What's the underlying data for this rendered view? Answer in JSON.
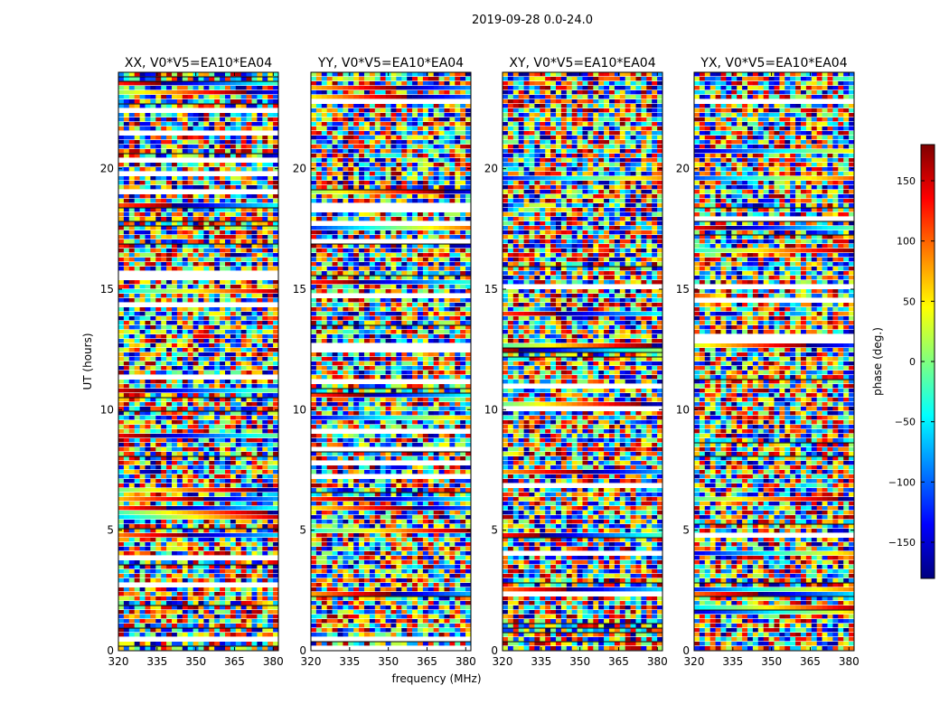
{
  "figure": {
    "title": "2019-09-28 0.0-24.0",
    "xlabel": "frequency (MHz)",
    "ylabel": "UT (hours)"
  },
  "colorbar": {
    "label": "phase (deg.)",
    "range": [
      -180,
      180
    ],
    "ticks": [
      150,
      100,
      50,
      0,
      -50,
      -100,
      -150
    ],
    "colormap": "jet",
    "colors": [
      "#00007f",
      "#0000ff",
      "#007fff",
      "#00ffff",
      "#7fff7f",
      "#ffff00",
      "#ff7f00",
      "#ff0000",
      "#7f0000"
    ]
  },
  "chart_data": [
    {
      "type": "heatmap",
      "title": "XX, V0*V5=EA10*EA04",
      "xlim": [
        320,
        382
      ],
      "ylim": [
        0,
        24
      ],
      "xticks": [
        320,
        335,
        350,
        365,
        380
      ],
      "yticks": [
        0,
        5,
        10,
        15,
        20
      ],
      "value": "phase (deg.)"
    },
    {
      "type": "heatmap",
      "title": "YY, V0*V5=EA10*EA04",
      "xlim": [
        320,
        382
      ],
      "ylim": [
        0,
        24
      ],
      "xticks": [
        320,
        335,
        350,
        365,
        380
      ],
      "yticks": [
        0,
        5,
        10,
        15,
        20
      ],
      "value": "phase (deg.)"
    },
    {
      "type": "heatmap",
      "title": "XY, V0*V5=EA10*EA04",
      "xlim": [
        320,
        382
      ],
      "ylim": [
        0,
        24
      ],
      "xticks": [
        320,
        335,
        350,
        365,
        380
      ],
      "yticks": [
        0,
        5,
        10,
        15,
        20
      ],
      "value": "phase (deg.)"
    },
    {
      "type": "heatmap",
      "title": "YX, V0*V5=EA10*EA04",
      "xlim": [
        320,
        382
      ],
      "ylim": [
        0,
        24
      ],
      "xticks": [
        320,
        335,
        350,
        365,
        380
      ],
      "yticks": [
        0,
        5,
        10,
        15,
        20
      ],
      "value": "phase (deg.)"
    }
  ]
}
